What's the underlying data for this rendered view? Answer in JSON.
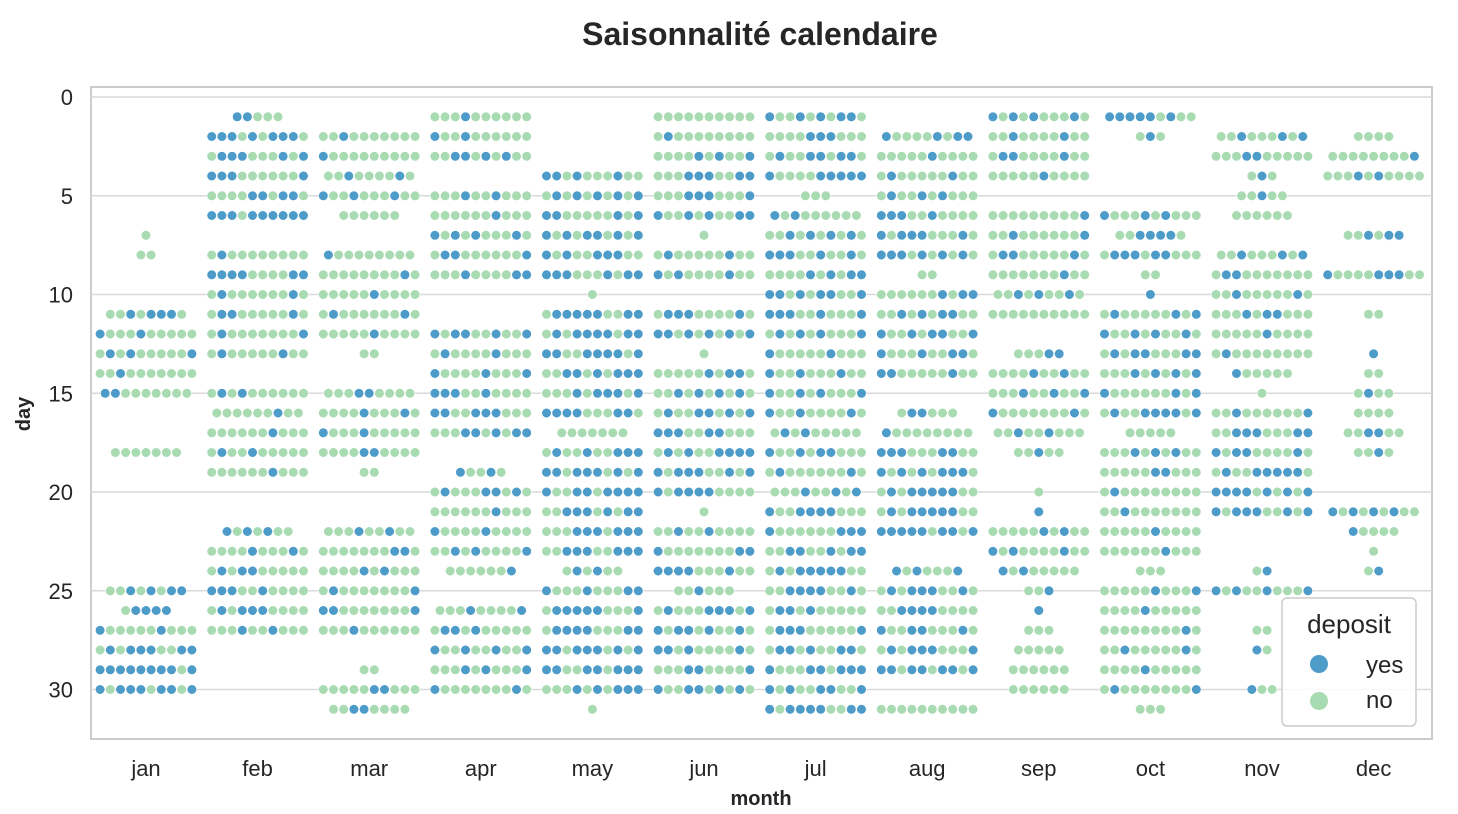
{
  "chart_data": {
    "type": "scatter",
    "subtype": "swarm",
    "title": "Saisonnalité calendaire",
    "xlabel": "month",
    "ylabel": "day",
    "categories": [
      "jan",
      "feb",
      "mar",
      "apr",
      "may",
      "jun",
      "jul",
      "aug",
      "sep",
      "oct",
      "nov",
      "dec"
    ],
    "ylim": [
      32.5,
      -0.5
    ],
    "y_inverted": true,
    "yticks": [
      0,
      5,
      10,
      15,
      20,
      25,
      30
    ],
    "grid": "horizontal",
    "legend": {
      "title": "deposit",
      "position": "bottom-right",
      "entries": [
        {
          "label": "yes",
          "color": "#4c9bc9"
        },
        {
          "label": "no",
          "color": "#a8dbb1"
        }
      ]
    },
    "colors": {
      "yes": "#4c9bc9",
      "no": "#a8dbb1"
    },
    "rows": {
      "jan": [
        [
          7,
          0,
          1
        ],
        [
          8,
          0,
          2
        ],
        [
          11,
          4,
          8
        ],
        [
          12,
          2,
          10
        ],
        [
          13,
          3,
          10
        ],
        [
          14,
          1,
          10
        ],
        [
          15,
          2,
          9
        ],
        [
          18,
          0,
          7
        ],
        [
          25,
          4,
          8
        ],
        [
          26,
          4,
          5
        ],
        [
          27,
          2,
          10
        ],
        [
          28,
          6,
          10
        ],
        [
          29,
          9,
          10
        ],
        [
          30,
          7,
          10
        ]
      ],
      "feb": [
        [
          1,
          2,
          5
        ],
        [
          2,
          7,
          10
        ],
        [
          3,
          5,
          10
        ],
        [
          4,
          4,
          10
        ],
        [
          5,
          4,
          10
        ],
        [
          6,
          9,
          10
        ],
        [
          8,
          1,
          10
        ],
        [
          9,
          6,
          10
        ],
        [
          10,
          2,
          10
        ],
        [
          11,
          3,
          10
        ],
        [
          12,
          2,
          10
        ],
        [
          13,
          2,
          10
        ],
        [
          15,
          2,
          10
        ],
        [
          16,
          1,
          9
        ],
        [
          17,
          1,
          10
        ],
        [
          18,
          2,
          10
        ],
        [
          19,
          1,
          10
        ],
        [
          22,
          3,
          7
        ],
        [
          23,
          2,
          10
        ],
        [
          24,
          3,
          10
        ],
        [
          25,
          4,
          10
        ],
        [
          26,
          4,
          10
        ],
        [
          27,
          2,
          10
        ]
      ],
      "mar": [
        [
          2,
          1,
          10
        ],
        [
          3,
          1,
          10
        ],
        [
          4,
          2,
          9
        ],
        [
          5,
          3,
          10
        ],
        [
          6,
          0,
          6
        ],
        [
          8,
          1,
          9
        ],
        [
          9,
          1,
          10
        ],
        [
          10,
          1,
          10
        ],
        [
          11,
          2,
          10
        ],
        [
          12,
          1,
          10
        ],
        [
          13,
          0,
          2
        ],
        [
          15,
          2,
          9
        ],
        [
          16,
          2,
          10
        ],
        [
          17,
          2,
          10
        ],
        [
          18,
          2,
          10
        ],
        [
          19,
          0,
          2
        ],
        [
          22,
          2,
          9
        ],
        [
          23,
          2,
          10
        ],
        [
          24,
          2,
          10
        ],
        [
          25,
          2,
          10
        ],
        [
          26,
          3,
          10
        ],
        [
          27,
          1,
          10
        ],
        [
          29,
          0,
          2
        ],
        [
          30,
          2,
          10
        ],
        [
          31,
          2,
          8
        ]
      ],
      "apr": [
        [
          1,
          1,
          10
        ],
        [
          2,
          2,
          10
        ],
        [
          3,
          4,
          10
        ],
        [
          5,
          2,
          10
        ],
        [
          6,
          1,
          10
        ],
        [
          7,
          4,
          10
        ],
        [
          8,
          3,
          10
        ],
        [
          9,
          3,
          10
        ],
        [
          12,
          5,
          10
        ],
        [
          13,
          2,
          10
        ],
        [
          14,
          3,
          10
        ],
        [
          15,
          4,
          10
        ],
        [
          16,
          5,
          10
        ],
        [
          17,
          5,
          10
        ],
        [
          19,
          2,
          5
        ],
        [
          20,
          4,
          10
        ],
        [
          21,
          1,
          10
        ],
        [
          22,
          2,
          10
        ],
        [
          23,
          3,
          10
        ],
        [
          24,
          1,
          7
        ],
        [
          26,
          2,
          9
        ],
        [
          27,
          3,
          10
        ],
        [
          28,
          4,
          10
        ],
        [
          29,
          3,
          10
        ],
        [
          30,
          2,
          10
        ]
      ],
      "may": [
        [
          4,
          4,
          10
        ],
        [
          5,
          5,
          10
        ],
        [
          6,
          4,
          10
        ],
        [
          7,
          6,
          10
        ],
        [
          8,
          5,
          10
        ],
        [
          9,
          6,
          10
        ],
        [
          10,
          0,
          1
        ],
        [
          11,
          7,
          10
        ],
        [
          12,
          7,
          10
        ],
        [
          13,
          7,
          10
        ],
        [
          14,
          6,
          10
        ],
        [
          15,
          5,
          10
        ],
        [
          16,
          6,
          10
        ],
        [
          17,
          0,
          7
        ],
        [
          18,
          5,
          10
        ],
        [
          19,
          7,
          10
        ],
        [
          20,
          7,
          10
        ],
        [
          21,
          6,
          10
        ],
        [
          22,
          6,
          10
        ],
        [
          23,
          6,
          10
        ],
        [
          24,
          2,
          6
        ],
        [
          25,
          4,
          10
        ],
        [
          26,
          6,
          10
        ],
        [
          27,
          6,
          10
        ],
        [
          28,
          7,
          10
        ],
        [
          29,
          7,
          10
        ],
        [
          30,
          5,
          10
        ],
        [
          31,
          0,
          1
        ]
      ],
      "jun": [
        [
          1,
          0,
          10
        ],
        [
          2,
          1,
          10
        ],
        [
          3,
          3,
          10
        ],
        [
          4,
          5,
          10
        ],
        [
          5,
          4,
          10
        ],
        [
          6,
          5,
          10
        ],
        [
          7,
          0,
          1
        ],
        [
          8,
          2,
          10
        ],
        [
          9,
          3,
          10
        ],
        [
          11,
          4,
          10
        ],
        [
          12,
          6,
          10
        ],
        [
          13,
          0,
          1
        ],
        [
          14,
          3,
          10
        ],
        [
          15,
          4,
          10
        ],
        [
          16,
          5,
          10
        ],
        [
          17,
          5,
          10
        ],
        [
          18,
          6,
          10
        ],
        [
          19,
          6,
          10
        ],
        [
          20,
          5,
          10
        ],
        [
          21,
          0,
          1
        ],
        [
          22,
          2,
          10
        ],
        [
          23,
          3,
          10
        ],
        [
          24,
          5,
          10
        ],
        [
          25,
          1,
          6
        ],
        [
          26,
          5,
          10
        ],
        [
          27,
          5,
          10
        ],
        [
          28,
          4,
          10
        ],
        [
          29,
          3,
          10
        ],
        [
          30,
          5,
          10
        ]
      ],
      "jul": [
        [
          1,
          5,
          10
        ],
        [
          2,
          3,
          10
        ],
        [
          3,
          5,
          10
        ],
        [
          4,
          6,
          10
        ],
        [
          5,
          0,
          3
        ],
        [
          6,
          2,
          9
        ],
        [
          7,
          4,
          10
        ],
        [
          8,
          5,
          10
        ],
        [
          9,
          4,
          10
        ],
        [
          10,
          6,
          10
        ],
        [
          11,
          5,
          10
        ],
        [
          12,
          4,
          10
        ],
        [
          13,
          2,
          10
        ],
        [
          14,
          3,
          10
        ],
        [
          15,
          4,
          10
        ],
        [
          16,
          3,
          10
        ],
        [
          17,
          2,
          9
        ],
        [
          18,
          4,
          10
        ],
        [
          19,
          2,
          10
        ],
        [
          20,
          3,
          9
        ],
        [
          21,
          5,
          10
        ],
        [
          22,
          4,
          10
        ],
        [
          23,
          5,
          10
        ],
        [
          24,
          6,
          10
        ],
        [
          25,
          5,
          10
        ],
        [
          26,
          3,
          10
        ],
        [
          27,
          4,
          10
        ],
        [
          28,
          5,
          10
        ],
        [
          29,
          6,
          10
        ],
        [
          30,
          5,
          10
        ],
        [
          31,
          7,
          10
        ]
      ],
      "aug": [
        [
          2,
          4,
          9
        ],
        [
          3,
          1,
          10
        ],
        [
          4,
          2,
          10
        ],
        [
          5,
          3,
          10
        ],
        [
          6,
          4,
          10
        ],
        [
          7,
          5,
          10
        ],
        [
          8,
          6,
          10
        ],
        [
          9,
          0,
          2
        ],
        [
          10,
          3,
          10
        ],
        [
          11,
          4,
          10
        ],
        [
          12,
          5,
          10
        ],
        [
          13,
          4,
          10
        ],
        [
          14,
          3,
          10
        ],
        [
          16,
          2,
          6
        ],
        [
          17,
          1,
          9
        ],
        [
          18,
          5,
          10
        ],
        [
          19,
          6,
          10
        ],
        [
          20,
          6,
          10
        ],
        [
          21,
          6,
          10
        ],
        [
          22,
          8,
          10
        ],
        [
          24,
          3,
          7
        ],
        [
          25,
          5,
          10
        ],
        [
          26,
          4,
          10
        ],
        [
          27,
          4,
          10
        ],
        [
          28,
          5,
          10
        ],
        [
          29,
          7,
          10
        ],
        [
          31,
          0,
          10
        ]
      ],
      "sep": [
        [
          1,
          4,
          10
        ],
        [
          2,
          2,
          10
        ],
        [
          3,
          3,
          10
        ],
        [
          4,
          1,
          10
        ],
        [
          6,
          1,
          10
        ],
        [
          7,
          2,
          10
        ],
        [
          8,
          3,
          10
        ],
        [
          9,
          1,
          10
        ],
        [
          10,
          3,
          9
        ],
        [
          11,
          0,
          10
        ],
        [
          13,
          2,
          5
        ],
        [
          14,
          2,
          10
        ],
        [
          15,
          3,
          10
        ],
        [
          16,
          2,
          10
        ],
        [
          17,
          2,
          9
        ],
        [
          18,
          1,
          5
        ],
        [
          20,
          0,
          1
        ],
        [
          21,
          1,
          1
        ],
        [
          22,
          2,
          10
        ],
        [
          23,
          3,
          10
        ],
        [
          24,
          2,
          8
        ],
        [
          25,
          1,
          3
        ],
        [
          26,
          1,
          1
        ],
        [
          27,
          0,
          3
        ],
        [
          28,
          0,
          5
        ],
        [
          29,
          0,
          6
        ],
        [
          30,
          0,
          6
        ]
      ],
      "oct": [
        [
          1,
          6,
          9
        ],
        [
          2,
          1,
          3
        ],
        [
          6,
          3,
          10
        ],
        [
          7,
          4,
          7
        ],
        [
          8,
          5,
          10
        ],
        [
          9,
          0,
          2
        ],
        [
          10,
          1,
          1
        ],
        [
          11,
          3,
          10
        ],
        [
          12,
          4,
          10
        ],
        [
          13,
          5,
          10
        ],
        [
          14,
          4,
          10
        ],
        [
          15,
          3,
          10
        ],
        [
          16,
          6,
          10
        ],
        [
          17,
          0,
          5
        ],
        [
          18,
          3,
          10
        ],
        [
          19,
          2,
          10
        ],
        [
          20,
          1,
          10
        ],
        [
          21,
          1,
          10
        ],
        [
          22,
          1,
          10
        ],
        [
          23,
          1,
          10
        ],
        [
          24,
          0,
          3
        ],
        [
          25,
          2,
          10
        ],
        [
          26,
          1,
          10
        ],
        [
          27,
          1,
          10
        ],
        [
          28,
          2,
          10
        ],
        [
          29,
          1,
          10
        ],
        [
          30,
          2,
          10
        ],
        [
          31,
          0,
          3
        ]
      ],
      "nov": [
        [
          2,
          3,
          9
        ],
        [
          3,
          2,
          10
        ],
        [
          4,
          1,
          3
        ],
        [
          5,
          1,
          5
        ],
        [
          6,
          0,
          6
        ],
        [
          8,
          3,
          9
        ],
        [
          9,
          2,
          10
        ],
        [
          10,
          2,
          10
        ],
        [
          11,
          3,
          10
        ],
        [
          12,
          1,
          10
        ],
        [
          13,
          1,
          10
        ],
        [
          14,
          1,
          6
        ],
        [
          15,
          0,
          1
        ],
        [
          16,
          2,
          10
        ],
        [
          17,
          5,
          10
        ],
        [
          18,
          4,
          10
        ],
        [
          19,
          6,
          10
        ],
        [
          20,
          7,
          10
        ],
        [
          21,
          6,
          10
        ],
        [
          24,
          1,
          2
        ],
        [
          25,
          4,
          10
        ],
        [
          27,
          0,
          2
        ],
        [
          28,
          1,
          2
        ],
        [
          30,
          1,
          3
        ]
      ],
      "dec": [
        [
          2,
          0,
          4
        ],
        [
          3,
          1,
          9
        ],
        [
          4,
          2,
          10
        ],
        [
          7,
          3,
          6
        ],
        [
          9,
          4,
          10
        ],
        [
          11,
          0,
          2
        ],
        [
          13,
          1,
          1
        ],
        [
          14,
          0,
          2
        ],
        [
          15,
          1,
          4
        ],
        [
          16,
          0,
          4
        ],
        [
          17,
          2,
          6
        ],
        [
          18,
          1,
          4
        ],
        [
          21,
          4,
          9
        ],
        [
          22,
          1,
          5
        ],
        [
          23,
          0,
          1
        ],
        [
          24,
          1,
          2
        ]
      ]
    }
  }
}
